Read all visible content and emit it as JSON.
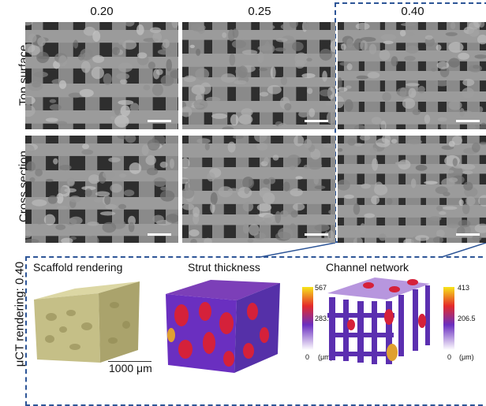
{
  "columns": [
    "0.20",
    "0.25",
    "0.40"
  ],
  "rows": [
    "Top surface",
    "Cross section"
  ],
  "bottom_row_label": "μCT rendering: 0.40",
  "panels": {
    "scaffold": {
      "title": "Scaffold rendering",
      "scale_label": "1000 μm"
    },
    "strut": {
      "title": "Strut thickness",
      "cb_max": "567",
      "cb_mid": "283.5",
      "cb_min": "0",
      "unit": "(μm)"
    },
    "channel": {
      "title": "Channel network",
      "cb_max": "413",
      "cb_mid": "206.5",
      "cb_min": "0",
      "unit": "(μm)"
    }
  },
  "colors": {
    "frame": "#2d5597",
    "sem_bg": "#5a5a5a",
    "scaffold": "#c9c48f"
  }
}
